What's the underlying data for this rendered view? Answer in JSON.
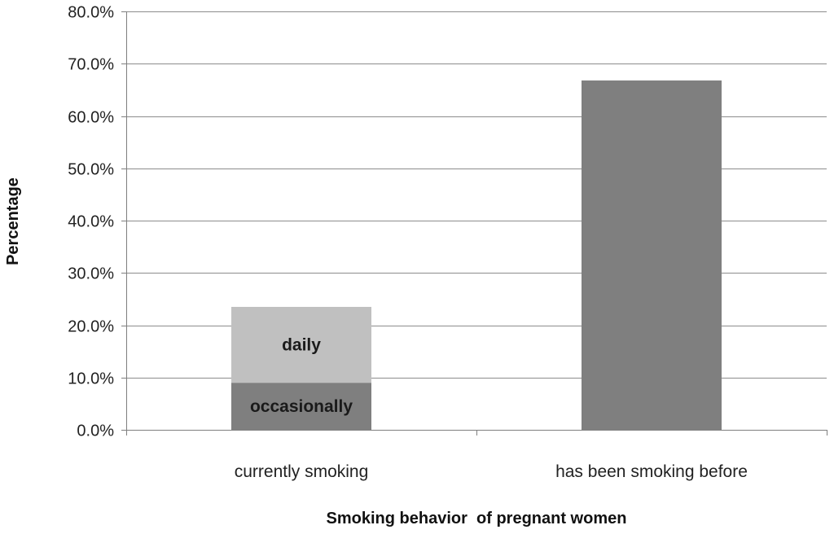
{
  "chart_data": {
    "type": "bar",
    "stacked": true,
    "title": "",
    "xlabel": "Smoking behavior  of pregnant women",
    "ylabel": "Percentage",
    "ylim": [
      0,
      80
    ],
    "yticks": [
      "0.0%",
      "10.0%",
      "20.0%",
      "30.0%",
      "40.0%",
      "50.0%",
      "60.0%",
      "70.0%",
      "80.0%"
    ],
    "grid": true,
    "legend": "none",
    "categories": [
      "currently smoking",
      "has been smoking before"
    ],
    "series": [
      {
        "name": "occasionally",
        "values": [
          9.0,
          66.8
        ],
        "colors": [
          "#7f7f7f",
          "#7f7f7f"
        ],
        "labels": [
          "occasionally",
          ""
        ]
      },
      {
        "name": "daily",
        "values": [
          14.5,
          0
        ],
        "colors": [
          "#c0c0c0",
          "#c0c0c0"
        ],
        "labels": [
          "daily",
          ""
        ]
      }
    ],
    "gridline_color": "#8c8c8c",
    "axis_color": "#7f7f7f"
  }
}
